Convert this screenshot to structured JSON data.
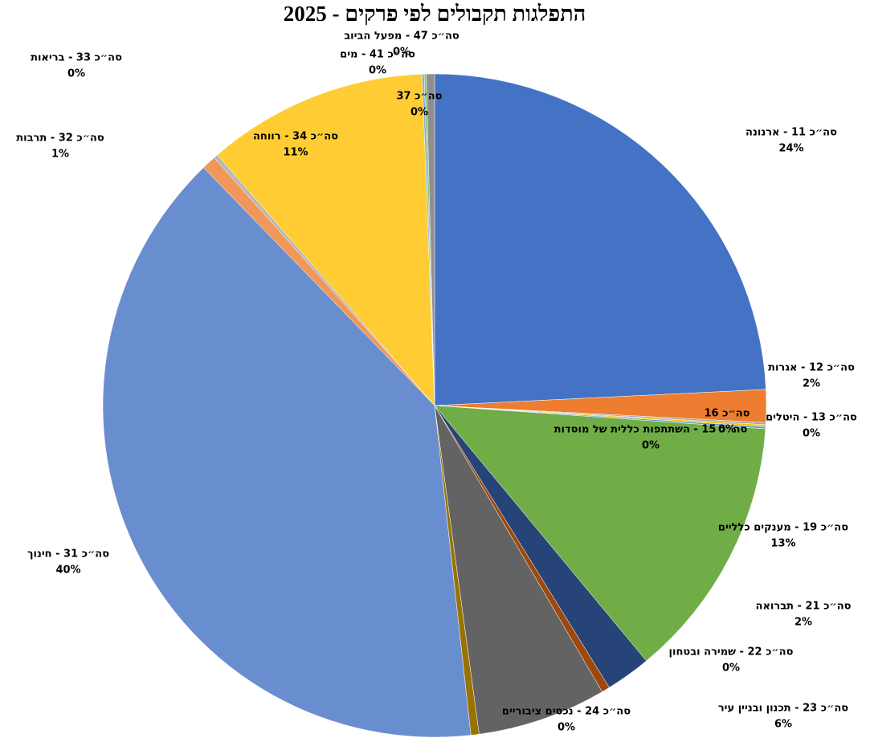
{
  "chart_data": {
    "type": "pie",
    "title": "התפלגות תקבולים לפי פרקים - 2025",
    "categories": [
      "סה״כ 11 - ארנונה",
      "סה״כ 12 - אגרות",
      "סה״כ 13 - היטלים",
      "סה״כ 15 - השתתפות כללית של מוסדות",
      "סה״כ 16",
      "סה״כ 19 - מענקים כלליים",
      "סה״כ 21 - תברואה",
      "סה״כ 22 - שמירה ובטחון",
      "סה״כ 23 - תכנון ובניין עיר",
      "סה״כ 24 - נכסים ציבוריים",
      "סה״כ 31 - חינוך",
      "סה״כ 32 - תרבות",
      "סה״כ 33 - בריאות",
      "סה״כ 34 - רווחה",
      "סה״כ 37",
      "סה״כ 41 - מים",
      "סה״כ 47 - מפעל הביוב"
    ],
    "values": [
      24.3,
      1.6,
      0.1,
      0.1,
      0.1,
      12.9,
      2.2,
      0.4,
      6.3,
      0.4,
      39.6,
      0.7,
      0.2,
      10.8,
      0.1,
      0.1,
      0.4
    ],
    "value_labels": [
      "24%",
      "2%",
      "0%",
      "0%",
      "0%",
      "13%",
      "2%",
      "0%",
      "6%",
      "0%",
      "40%",
      "1%",
      "0%",
      "11%",
      "0%",
      "0%",
      "0%"
    ],
    "colors": [
      "#4472c4",
      "#ed7d31",
      "#a5a5a5",
      "#ffc000",
      "#5b9bd5",
      "#70ad47",
      "#264478",
      "#9e480e",
      "#636363",
      "#997300",
      "#698ed0",
      "#f1975a",
      "#b7b7b7",
      "#ffcd33",
      "#7cafdd",
      "#8cc168",
      "#8f8f8f"
    ]
  }
}
